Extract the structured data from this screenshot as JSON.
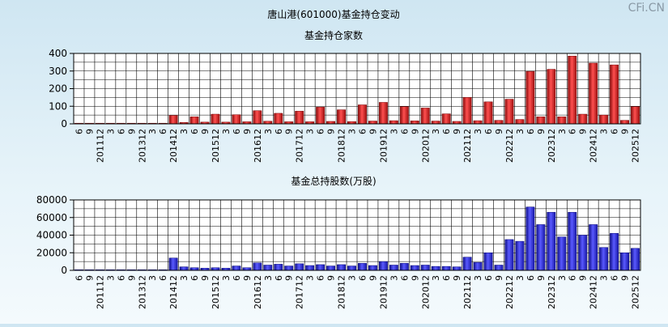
{
  "watermark": "CFi.CN",
  "page_title": "唐山港(601000)基金持仓变动",
  "chart_data": [
    {
      "type": "bar",
      "title": "基金持仓家数",
      "ylim": [
        0,
        400
      ],
      "yticks": [
        "0",
        "100",
        "200",
        "300",
        "400"
      ],
      "categories": [
        "6",
        "9",
        "201112",
        "3",
        "6",
        "9",
        "201312",
        "3",
        "6",
        "201412",
        "3",
        "6",
        "9",
        "201512",
        "3",
        "6",
        "9",
        "201612",
        "3",
        "6",
        "9",
        "201712",
        "3",
        "6",
        "9",
        "201812",
        "3",
        "6",
        "9",
        "201912",
        "3",
        "6",
        "9",
        "202012",
        "3",
        "6",
        "9",
        "202112",
        "3",
        "6",
        "9",
        "202212",
        "3",
        "6",
        "9",
        "202312",
        "3",
        "6",
        "9",
        "202412",
        "3",
        "6",
        "9",
        "202512"
      ],
      "values": [
        2,
        3,
        2,
        3,
        2,
        2,
        2,
        2,
        2,
        48,
        8,
        40,
        10,
        55,
        10,
        52,
        12,
        75,
        15,
        60,
        12,
        72,
        12,
        95,
        14,
        80,
        13,
        108,
        16,
        122,
        18,
        98,
        17,
        90,
        16,
        57,
        14,
        150,
        18,
        125,
        20,
        140,
        25,
        298,
        40,
        310,
        40,
        385,
        55,
        345,
        50,
        335,
        20,
        98
      ],
      "bar_color": "#e02222"
    },
    {
      "type": "bar",
      "title": "基金总持股数(万股)",
      "ylim": [
        0,
        80000
      ],
      "yticks": [
        "0",
        "20000",
        "40000",
        "60000",
        "80000"
      ],
      "categories": [
        "6",
        "9",
        "201112",
        "3",
        "6",
        "9",
        "201312",
        "3",
        "6",
        "201412",
        "3",
        "6",
        "9",
        "201512",
        "3",
        "6",
        "9",
        "201612",
        "3",
        "6",
        "9",
        "201712",
        "3",
        "6",
        "9",
        "201812",
        "3",
        "6",
        "9",
        "201912",
        "3",
        "6",
        "9",
        "202012",
        "3",
        "6",
        "9",
        "202112",
        "3",
        "6",
        "9",
        "202212",
        "3",
        "6",
        "9",
        "202312",
        "3",
        "6",
        "9",
        "202412",
        "3",
        "6",
        "9",
        "202512"
      ],
      "values": [
        500,
        500,
        500,
        500,
        500,
        500,
        500,
        500,
        500,
        14000,
        4000,
        3000,
        2500,
        3000,
        2500,
        5000,
        3000,
        8500,
        6000,
        7000,
        5000,
        7500,
        5500,
        6500,
        5000,
        6500,
        5000,
        8000,
        5500,
        10000,
        6000,
        8000,
        5500,
        6000,
        4500,
        4500,
        4000,
        15000,
        9000,
        20000,
        6000,
        35000,
        33000,
        72000,
        52000,
        66000,
        38000,
        66000,
        40000,
        52000,
        26000,
        42000,
        20000,
        25000
      ],
      "bar_color": "#3030e8"
    }
  ]
}
